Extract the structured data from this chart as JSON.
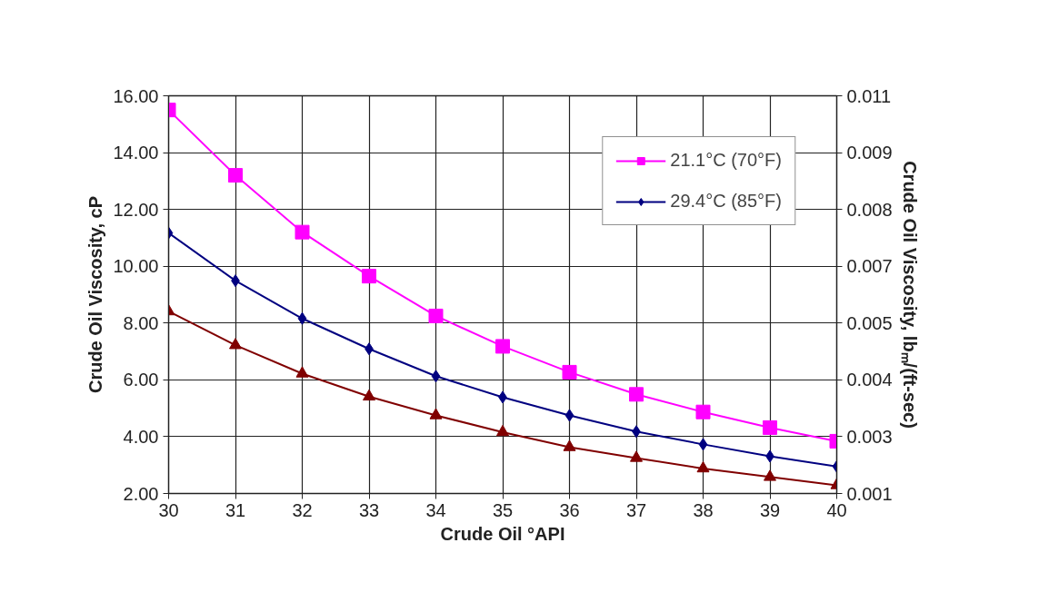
{
  "chart_data": {
    "type": "line",
    "xlabel": "Crude Oil °API",
    "ylabel": "Crude Oil Viscosity, cP",
    "y2label": "Crude Oil Viscosity, lbₘ/(ft-sec)",
    "x": [
      30,
      31,
      32,
      33,
      34,
      35,
      36,
      37,
      38,
      39,
      40
    ],
    "series": [
      {
        "name": "21.1°C (70°F)",
        "color": "#ff00ff",
        "marker": "square",
        "values": [
          15.5,
          13.2,
          11.2,
          9.65,
          8.25,
          7.18,
          6.27,
          5.49,
          4.87,
          4.32,
          3.84
        ]
      },
      {
        "name": "29.4°C (85°F)",
        "color": "#000080",
        "marker": "diamond",
        "values": [
          11.17,
          9.49,
          8.16,
          7.09,
          6.13,
          5.39,
          4.75,
          4.18,
          3.73,
          3.31,
          2.95
        ]
      },
      {
        "color": "#800000",
        "marker": "triangle",
        "values": [
          8.41,
          7.22,
          6.22,
          5.41,
          4.75,
          4.16,
          3.63,
          3.25,
          2.88,
          2.58,
          2.29
        ]
      }
    ],
    "xlim": [
      30,
      40
    ],
    "xticks": [
      30,
      31,
      32,
      33,
      34,
      35,
      36,
      37,
      38,
      39,
      40
    ],
    "ylim": [
      2,
      16
    ],
    "yticks": [
      {
        "value": 2,
        "label": "2.00"
      },
      {
        "value": 4,
        "label": "4.00"
      },
      {
        "value": 6,
        "label": "6.00"
      },
      {
        "value": 8,
        "label": "8.00"
      },
      {
        "value": 10,
        "label": "10.00"
      },
      {
        "value": 12,
        "label": "12.00"
      },
      {
        "value": 14,
        "label": "14.00"
      },
      {
        "value": 16,
        "label": "16.00"
      }
    ],
    "y2lim": [
      0.001344,
      0.010752
    ],
    "y2ticks": [
      {
        "value": 0.001344,
        "label": "0.001"
      },
      {
        "value": 0.002688,
        "label": "0.003"
      },
      {
        "value": 0.004032,
        "label": "0.004"
      },
      {
        "value": 0.005376,
        "label": "0.005"
      },
      {
        "value": 0.00672,
        "label": "0.007"
      },
      {
        "value": 0.008064,
        "label": "0.008"
      },
      {
        "value": 0.009408,
        "label": "0.009"
      },
      {
        "value": 0.010752,
        "label": "0.011"
      }
    ],
    "grid": true,
    "legend": "top right",
    "line_style": "solid"
  }
}
